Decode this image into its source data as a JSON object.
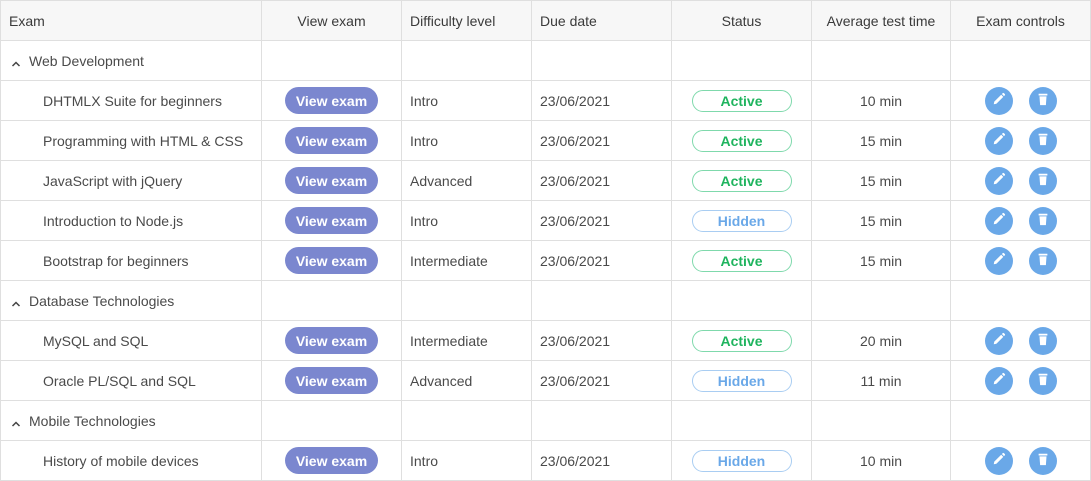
{
  "columns": [
    "Exam",
    "View exam",
    "Difficulty level",
    "Due date",
    "Status",
    "Average test time",
    "Exam controls"
  ],
  "colors": {
    "view_button": "#7b87cf",
    "active": "#1fb45e",
    "active_border": "#7fd9ac",
    "hidden": "#6aa8e8",
    "hidden_border": "#a9cdf2",
    "control_button": "#6aa8e8"
  },
  "groups": [
    {
      "name": "Web Development",
      "expanded": true,
      "rows": [
        {
          "exam": "DHTMLX Suite for beginners",
          "view": "View exam",
          "difficulty": "Intro",
          "due": "23/06/2021",
          "status": "Active",
          "time": "10 min"
        },
        {
          "exam": "Programming with HTML & CSS",
          "view": "View exam",
          "difficulty": "Intro",
          "due": "23/06/2021",
          "status": "Active",
          "time": "15 min"
        },
        {
          "exam": "JavaScript with jQuery",
          "view": "View exam",
          "difficulty": "Advanced",
          "due": "23/06/2021",
          "status": "Active",
          "time": "15 min"
        },
        {
          "exam": "Introduction to Node.js",
          "view": "View exam",
          "difficulty": "Intro",
          "due": "23/06/2021",
          "status": "Hidden",
          "time": "15 min"
        },
        {
          "exam": "Bootstrap for beginners",
          "view": "View exam",
          "difficulty": "Intermediate",
          "due": "23/06/2021",
          "status": "Active",
          "time": "15 min"
        }
      ]
    },
    {
      "name": "Database Technologies",
      "expanded": true,
      "rows": [
        {
          "exam": "MySQL and SQL",
          "view": "View exam",
          "difficulty": "Intermediate",
          "due": "23/06/2021",
          "status": "Active",
          "time": "20 min"
        },
        {
          "exam": "Oracle PL/SQL and SQL",
          "view": "View exam",
          "difficulty": "Advanced",
          "due": "23/06/2021",
          "status": "Hidden",
          "time": "11 min"
        }
      ]
    },
    {
      "name": "Mobile Technologies",
      "expanded": true,
      "rows": [
        {
          "exam": "History of mobile devices",
          "view": "View exam",
          "difficulty": "Intro",
          "due": "23/06/2021",
          "status": "Hidden",
          "time": "10 min"
        }
      ]
    }
  ]
}
